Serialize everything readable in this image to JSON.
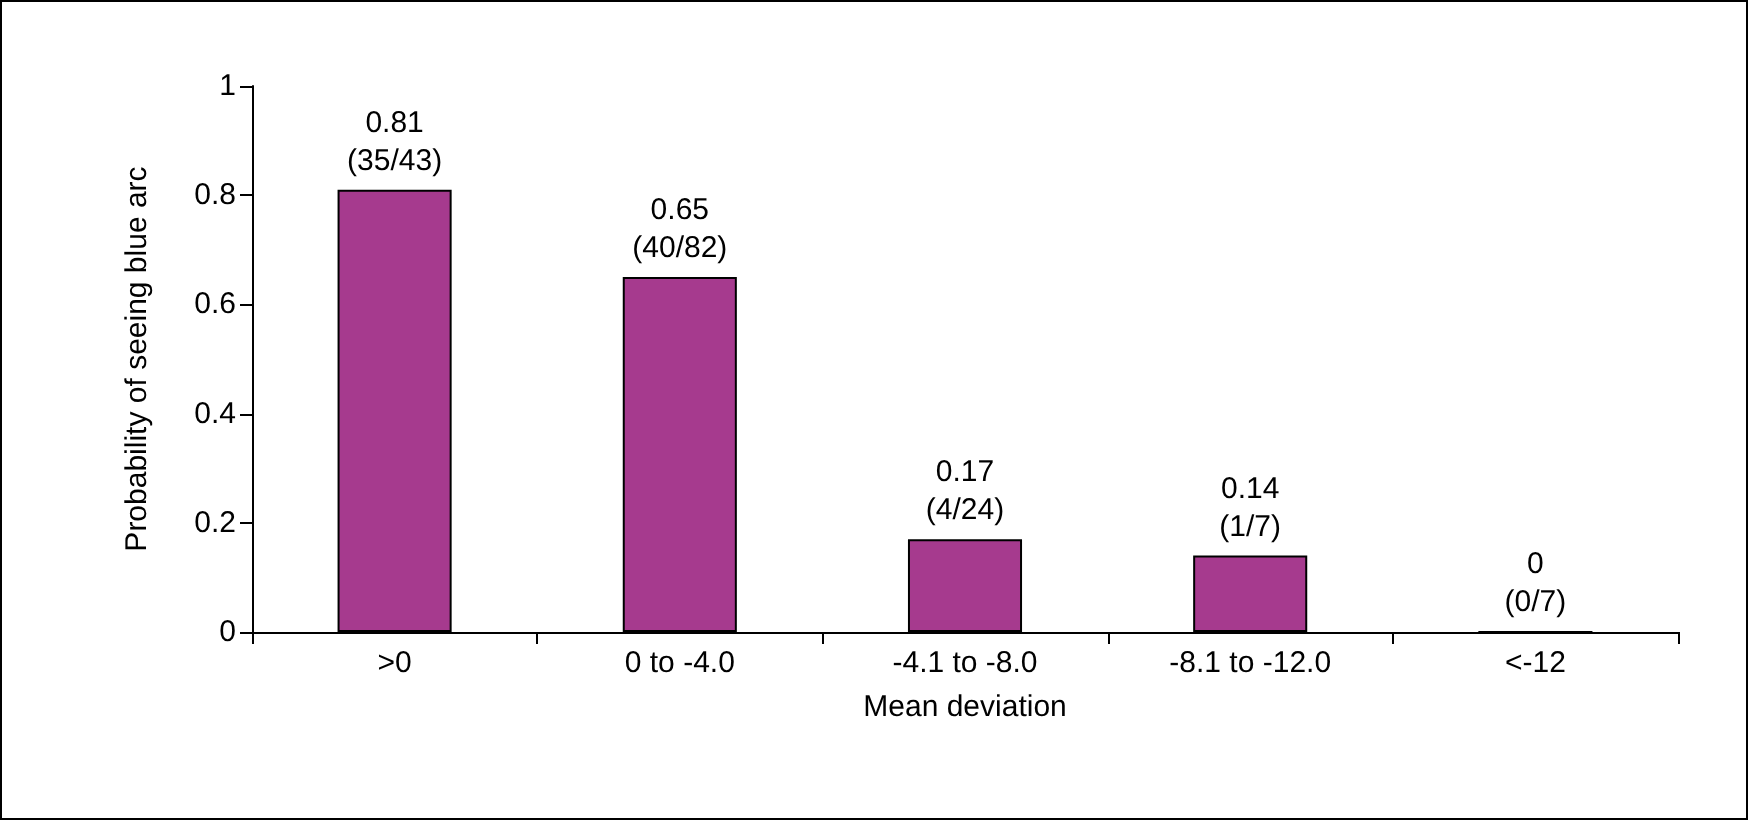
{
  "chart_data": {
    "type": "bar",
    "xlabel": "Mean deviation",
    "ylabel": "Probability of seeing blue arc",
    "categories": [
      ">0",
      "0 to -4.0",
      "-4.1 to -8.0",
      "-8.1 to -12.0",
      "<-12"
    ],
    "values": [
      0.81,
      0.65,
      0.17,
      0.14,
      0
    ],
    "value_labels": [
      "0.81\n(35/43)",
      "0.65\n(40/82)",
      "0.17\n(4/24)",
      "0.14\n(1/7)",
      "0\n(0/7)"
    ],
    "color": "#a63a8e",
    "ylim": [
      0,
      1
    ],
    "yticks": [
      0,
      0.2,
      0.4,
      0.6,
      0.8,
      1
    ],
    "grid": false
  }
}
